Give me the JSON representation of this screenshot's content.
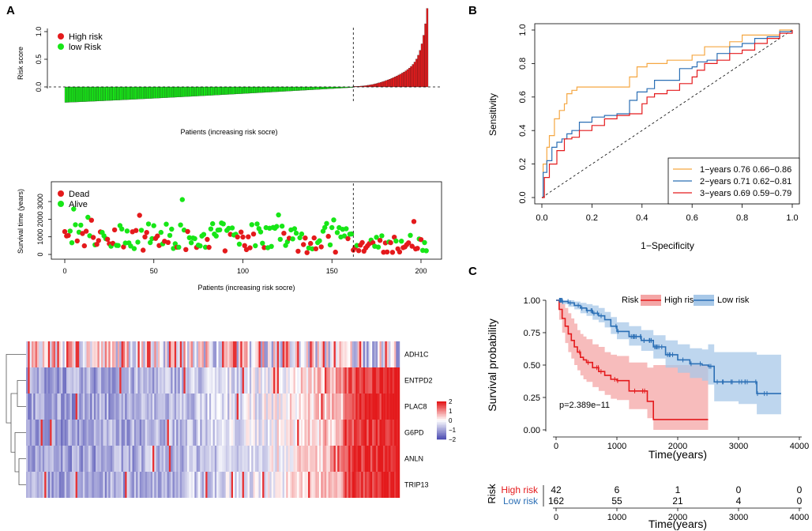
{
  "panels": {
    "a_label": "A",
    "b_label": "B",
    "c_label": "C"
  },
  "chart_data": [
    {
      "id": "risk_score",
      "type": "bar",
      "xlabel": "Patients (increasing risk socre)",
      "ylabel": "Risk score",
      "ylim": [
        -0.3,
        1.45
      ],
      "yticks": [
        "0.0",
        "0.5",
        "1.0"
      ],
      "n_patients": 204,
      "cutoff_index": 162,
      "legend": [
        {
          "label": "High risk",
          "color": "#e41a1c"
        },
        {
          "label": "low Risk",
          "color": "#17e617"
        }
      ],
      "series": [
        {
          "name": "low Risk",
          "color": "#17e617",
          "values_range": [
            -0.28,
            -0.01
          ],
          "count": 162
        },
        {
          "name": "High risk",
          "color": "#e41a1c",
          "values_range": [
            0.01,
            1.42
          ],
          "count": 42
        }
      ]
    },
    {
      "id": "survival_time",
      "type": "scatter",
      "xlabel": "Patients (increasing risk socre)",
      "ylabel": "Survival time (years)",
      "xlim": [
        0,
        205
      ],
      "ylim": [
        0,
        3900
      ],
      "xticks": [
        "0",
        "50",
        "100",
        "150",
        "200"
      ],
      "yticks": [
        "0",
        "1000",
        "2000",
        "3000"
      ],
      "cutoff_index": 162,
      "legend": [
        {
          "label": "Dead",
          "color": "#e41a1c"
        },
        {
          "label": "Alive",
          "color": "#17e617"
        }
      ]
    },
    {
      "id": "heatmap",
      "type": "heatmap",
      "genes": [
        "ADH1C",
        "ENTPD2",
        "PLAC8",
        "G6PD",
        "ANLN",
        "TRIP13"
      ],
      "color_scale": {
        "min": -2,
        "max": 2,
        "labels": [
          "2",
          "1",
          "0",
          "−1",
          "−2"
        ],
        "low": "#5050b4",
        "mid": "#ffffff",
        "high": "#e41a1c"
      },
      "n_columns": 204
    },
    {
      "id": "roc",
      "type": "line",
      "xlabel": "1−Specificity",
      "ylabel": "Sensitivity",
      "xlim": [
        0,
        1
      ],
      "ylim": [
        0,
        1
      ],
      "xticks": [
        "0.0",
        "0.2",
        "0.4",
        "0.6",
        "0.8",
        "1.0"
      ],
      "yticks": [
        "0.0",
        "0.2",
        "0.4",
        "0.6",
        "0.8",
        "1.0"
      ],
      "series": [
        {
          "name": "1−years",
          "legend": "1−years 0.76 0.66−0.86",
          "color": "#f5a742",
          "x": [
            0,
            0.005,
            0.02,
            0.03,
            0.05,
            0.07,
            0.09,
            0.1,
            0.12,
            0.14,
            0.17,
            0.2,
            0.25,
            0.3,
            0.35,
            0.38,
            0.42,
            0.45,
            0.5,
            0.55,
            0.6,
            0.65,
            0.7,
            0.75,
            0.8,
            0.85,
            0.9,
            0.95,
            1.0
          ],
          "y": [
            0,
            0.2,
            0.3,
            0.37,
            0.47,
            0.52,
            0.56,
            0.62,
            0.64,
            0.66,
            0.66,
            0.66,
            0.66,
            0.66,
            0.72,
            0.78,
            0.8,
            0.8,
            0.82,
            0.82,
            0.85,
            0.9,
            0.9,
            0.93,
            0.97,
            0.97,
            0.97,
            1.0,
            1.0
          ]
        },
        {
          "name": "2−years",
          "legend": "2−years 0.71 0.62−0.81",
          "color": "#2b6fb5",
          "x": [
            0,
            0.005,
            0.02,
            0.04,
            0.06,
            0.08,
            0.1,
            0.12,
            0.15,
            0.2,
            0.25,
            0.3,
            0.35,
            0.38,
            0.42,
            0.45,
            0.5,
            0.55,
            0.6,
            0.62,
            0.66,
            0.7,
            0.75,
            0.8,
            0.85,
            0.9,
            0.95,
            1.0
          ],
          "y": [
            0,
            0.15,
            0.22,
            0.3,
            0.33,
            0.35,
            0.38,
            0.4,
            0.45,
            0.48,
            0.49,
            0.5,
            0.58,
            0.63,
            0.65,
            0.7,
            0.7,
            0.77,
            0.78,
            0.81,
            0.82,
            0.86,
            0.9,
            0.92,
            0.95,
            0.96,
            0.99,
            1.0
          ]
        },
        {
          "name": "3−years",
          "legend": "3−years 0.69 0.59−0.79",
          "color": "#e41a1c",
          "x": [
            0,
            0.01,
            0.03,
            0.06,
            0.09,
            0.12,
            0.15,
            0.2,
            0.25,
            0.3,
            0.35,
            0.4,
            0.42,
            0.45,
            0.5,
            0.55,
            0.6,
            0.62,
            0.65,
            0.7,
            0.75,
            0.8,
            0.85,
            0.9,
            0.95,
            1.0
          ],
          "y": [
            0,
            0.12,
            0.2,
            0.28,
            0.35,
            0.36,
            0.4,
            0.43,
            0.47,
            0.49,
            0.5,
            0.56,
            0.6,
            0.62,
            0.64,
            0.68,
            0.72,
            0.76,
            0.8,
            0.82,
            0.86,
            0.88,
            0.92,
            0.95,
            0.98,
            1.0
          ]
        }
      ]
    },
    {
      "id": "km",
      "type": "line",
      "xlabel": "Time(years)",
      "ylabel": "Survival probability",
      "xlim": [
        0,
        4000
      ],
      "ylim": [
        0,
        1
      ],
      "xticks": [
        "0",
        "1000",
        "2000",
        "3000",
        "4000"
      ],
      "yticks": [
        "0.00",
        "0.25",
        "0.50",
        "0.75",
        "1.00"
      ],
      "legend_title": "Risk",
      "pvalue": "p=2.389e−11",
      "series": [
        {
          "name": "High risk",
          "color": "#e41a1c",
          "band": "#f4a6a6",
          "x": [
            0,
            50,
            100,
            150,
            200,
            250,
            300,
            350,
            400,
            450,
            500,
            600,
            700,
            800,
            900,
            1000,
            1200,
            1500,
            1600,
            2000,
            2400,
            2500
          ],
          "y": [
            1.0,
            0.93,
            0.86,
            0.8,
            0.74,
            0.69,
            0.64,
            0.6,
            0.56,
            0.54,
            0.52,
            0.48,
            0.45,
            0.42,
            0.39,
            0.38,
            0.3,
            0.22,
            0.08,
            0.08,
            0.08,
            0.08
          ],
          "lo": [
            1.0,
            0.85,
            0.75,
            0.67,
            0.6,
            0.55,
            0.5,
            0.46,
            0.42,
            0.39,
            0.37,
            0.33,
            0.3,
            0.27,
            0.24,
            0.23,
            0.16,
            0.09,
            0.0,
            0.0,
            0.0,
            0.0
          ],
          "hi": [
            1.0,
            1.0,
            0.97,
            0.94,
            0.9,
            0.86,
            0.82,
            0.77,
            0.74,
            0.72,
            0.7,
            0.66,
            0.64,
            0.6,
            0.58,
            0.57,
            0.52,
            0.48,
            0.5,
            0.5,
            0.5,
            0.5
          ]
        },
        {
          "name": "Low risk",
          "color": "#2b6fb5",
          "band": "#a8c8e8",
          "x": [
            0,
            100,
            200,
            300,
            400,
            500,
            600,
            700,
            800,
            900,
            1000,
            1200,
            1400,
            1600,
            1800,
            2000,
            2200,
            2400,
            2500,
            2600,
            3000,
            3300,
            3700
          ],
          "y": [
            1.0,
            0.99,
            0.98,
            0.96,
            0.94,
            0.92,
            0.9,
            0.88,
            0.85,
            0.8,
            0.76,
            0.72,
            0.69,
            0.64,
            0.58,
            0.54,
            0.51,
            0.5,
            0.49,
            0.37,
            0.37,
            0.28,
            0.28
          ],
          "lo": [
            1.0,
            0.97,
            0.95,
            0.93,
            0.9,
            0.88,
            0.85,
            0.83,
            0.79,
            0.74,
            0.7,
            0.65,
            0.61,
            0.55,
            0.48,
            0.44,
            0.4,
            0.38,
            0.35,
            0.22,
            0.2,
            0.12,
            0.12
          ],
          "hi": [
            1.0,
            1.0,
            1.0,
            0.99,
            0.98,
            0.97,
            0.96,
            0.94,
            0.91,
            0.87,
            0.83,
            0.8,
            0.77,
            0.73,
            0.69,
            0.66,
            0.63,
            0.62,
            0.66,
            0.6,
            0.6,
            0.58,
            0.58
          ]
        }
      ],
      "risk_table": {
        "title": "Risk",
        "xlabel": "Time(years)",
        "rows": [
          {
            "label": "High risk",
            "color": "#e41a1c",
            "counts": [
              "42",
              "6",
              "1",
              "0",
              "0"
            ]
          },
          {
            "label": "Low risk",
            "color": "#2b6fb5",
            "counts": [
              "162",
              "55",
              "21",
              "4",
              "0"
            ]
          }
        ]
      }
    }
  ]
}
